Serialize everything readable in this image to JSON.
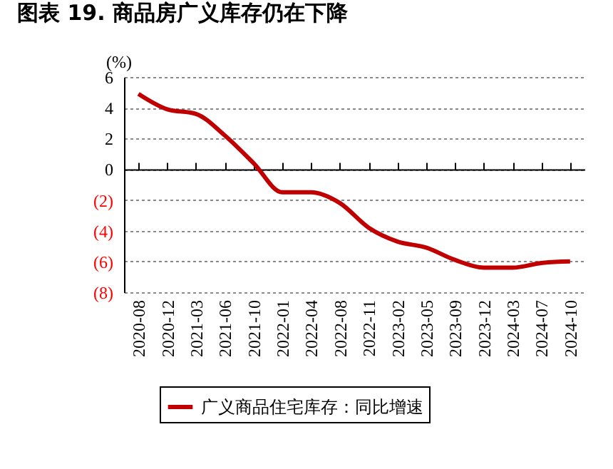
{
  "chart_data": {
    "type": "line",
    "title": "图表 19. 商品房广义库存仍在下降",
    "ylabel": "(%)",
    "categories": [
      "2020-08",
      "2020-12",
      "2021-03",
      "2021-06",
      "2021-10",
      "2022-01",
      "2022-04",
      "2022-08",
      "2022-11",
      "2023-02",
      "2023-05",
      "2023-09",
      "2023-12",
      "2024-03",
      "2024-07",
      "2024-10"
    ],
    "series": [
      {
        "name": "广义商品住宅库存：同比增速",
        "color": "#c00000",
        "values": [
          4.9,
          3.9,
          3.6,
          2.2,
          0.4,
          -1.5,
          -1.5,
          -2.2,
          -3.8,
          -4.7,
          -5.1,
          -5.9,
          -6.4,
          -6.4,
          -6.1,
          -6.0
        ]
      }
    ],
    "ylim": [
      -8,
      6
    ],
    "yticks": [
      {
        "value": -8,
        "label": "(8)"
      },
      {
        "value": -6,
        "label": "(6)"
      },
      {
        "value": -4,
        "label": "(4)"
      },
      {
        "value": -2,
        "label": "(2)"
      },
      0,
      2,
      4,
      6
    ],
    "grid": "y",
    "legend": "bottom",
    "marker": "none",
    "line_style": "solid"
  }
}
